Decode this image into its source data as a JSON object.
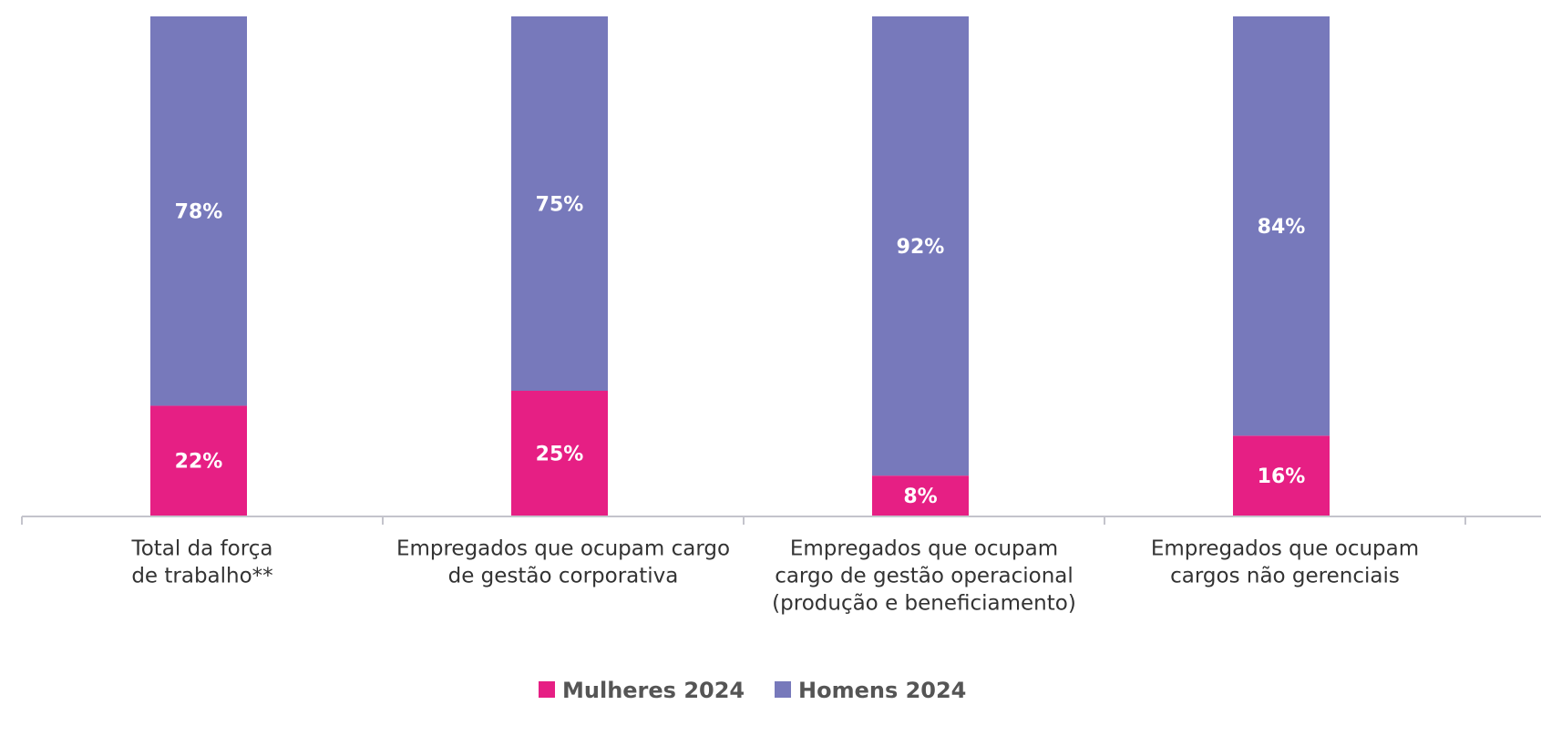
{
  "chart_data": {
    "type": "stacked_bar",
    "categories": [
      [
        "Total da força",
        "de trabalho**"
      ],
      [
        "Empregados que ocupam cargo",
        "de gestão corporativa"
      ],
      [
        "Empregados que ocupam",
        "cargo de gestão operacional",
        "(produção e beneficiamento)"
      ],
      [
        "Empregados que ocupam",
        "cargos não gerenciais"
      ]
    ],
    "series": [
      {
        "name": "Mulheres 2024",
        "color": "#e61f84",
        "values": [
          22,
          25,
          8,
          16
        ],
        "value_labels": [
          "22%",
          "25%",
          "8%",
          "16%"
        ]
      },
      {
        "name": "Homens 2024",
        "color": "#7779bb",
        "values": [
          78,
          75,
          92,
          84
        ],
        "value_labels": [
          "78%",
          "75%",
          "92%",
          "84%"
        ]
      }
    ],
    "ylim": [
      0,
      100
    ],
    "legend": "bottom"
  }
}
